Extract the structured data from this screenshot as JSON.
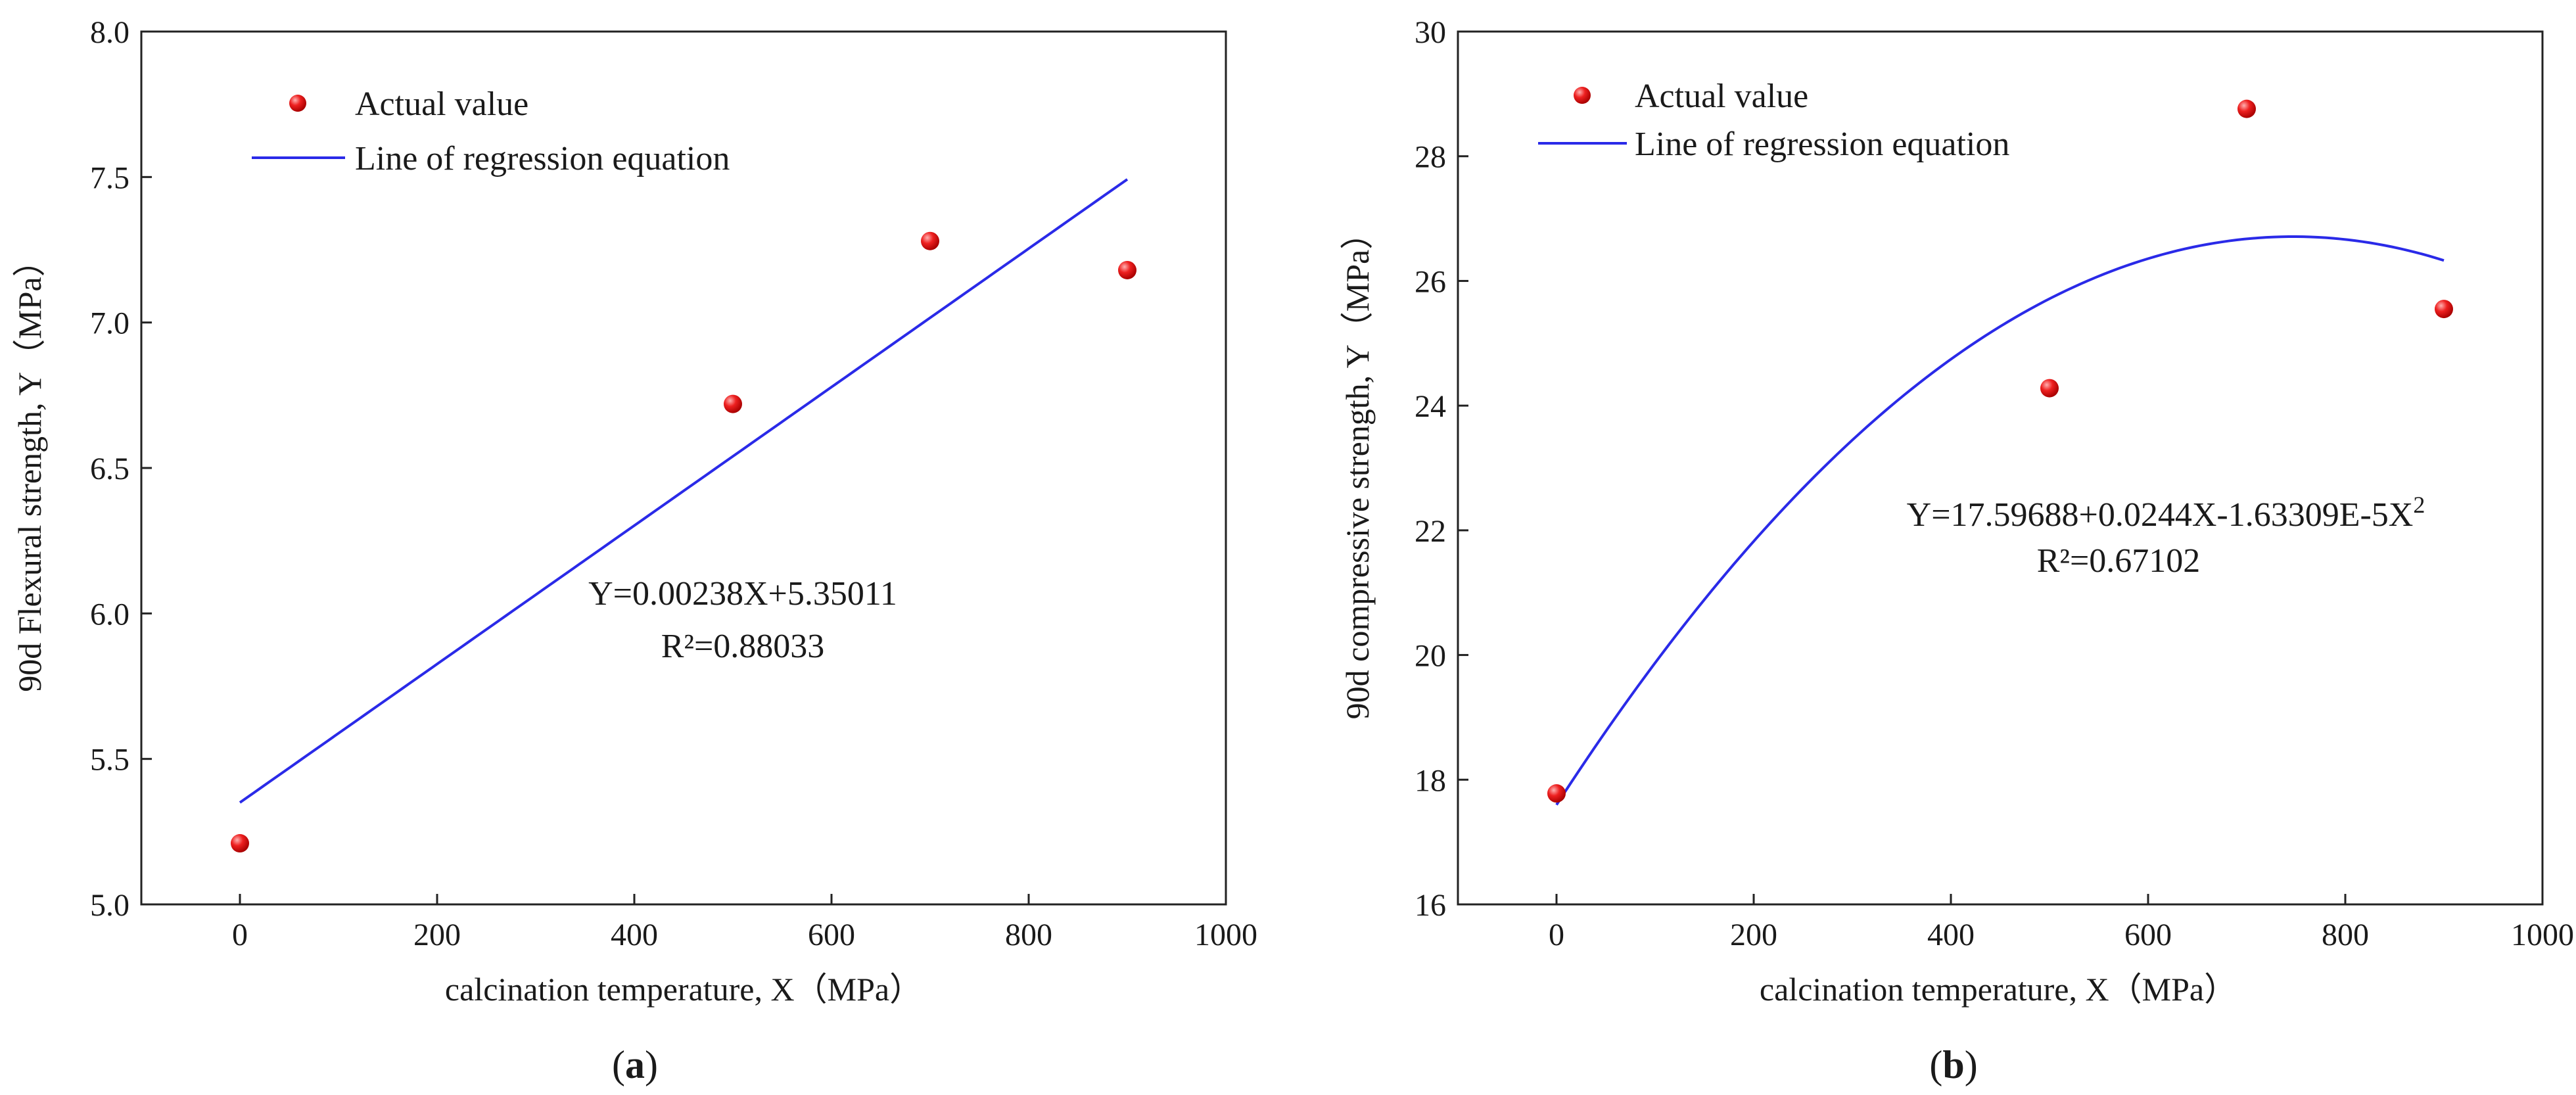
{
  "colors": {
    "point": "#e01414",
    "line": "#2a2ae8",
    "axis": "#222222"
  },
  "chart_data": [
    {
      "type": "scatter",
      "panel": {
        "open": "(",
        "letter": "a",
        "close": ")"
      },
      "xlabel": "calcination temperature, X（MPa）",
      "ylabel": "90d Flexural strength, Y（MPa）",
      "xlim": [
        -100,
        1000
      ],
      "ylim": [
        5.0,
        8.0
      ],
      "xticks": [
        0,
        200,
        400,
        600,
        800,
        1000
      ],
      "yticks": [
        5.0,
        5.5,
        6.0,
        6.5,
        7.0,
        7.5,
        8.0
      ],
      "xtick_labels": [
        "0",
        "200",
        "400",
        "600",
        "800",
        "1000"
      ],
      "ytick_labels": [
        "5.0",
        "5.5",
        "6.0",
        "6.5",
        "7.0",
        "7.5",
        "8.0"
      ],
      "legend": [
        "Actual value",
        "Line of regression equation"
      ],
      "legend_position": "top-left",
      "series": [
        {
          "name": "Actual value",
          "kind": "points",
          "x": [
            0,
            500,
            700,
            900
          ],
          "y": [
            5.21,
            6.72,
            7.28,
            7.18
          ]
        },
        {
          "name": "Line of regression equation",
          "kind": "line",
          "model": "linear",
          "coef": [
            5.35011,
            0.00238
          ],
          "x_range": [
            0,
            900
          ]
        }
      ],
      "annotation": {
        "equation": "Y=0.00238X+5.35011",
        "r2": "R²=0.88033"
      }
    },
    {
      "type": "scatter",
      "panel": {
        "open": "(",
        "letter": "b",
        "close": ")"
      },
      "xlabel": "calcination temperature, X（MPa）",
      "ylabel": "90d compressive strength, Y（MPa）",
      "xlim": [
        -100,
        1000
      ],
      "ylim": [
        16,
        30
      ],
      "xticks": [
        0,
        200,
        400,
        600,
        800,
        1000
      ],
      "yticks": [
        16,
        18,
        20,
        22,
        24,
        26,
        28,
        30
      ],
      "xtick_labels": [
        "0",
        "200",
        "400",
        "600",
        "800",
        "1000"
      ],
      "ytick_labels": [
        "16",
        "18",
        "20",
        "22",
        "24",
        "26",
        "28",
        "30"
      ],
      "legend": [
        "Actual value",
        "Line of regression equation"
      ],
      "legend_position": "top-left",
      "series": [
        {
          "name": "Actual value",
          "kind": "points",
          "x": [
            0,
            500,
            700,
            900
          ],
          "y": [
            17.78,
            24.28,
            28.76,
            25.55
          ]
        },
        {
          "name": "Line of regression equation",
          "kind": "line",
          "model": "quadratic",
          "coef": [
            17.59688,
            0.0244,
            -1.63309e-05
          ],
          "x_range": [
            0,
            900
          ]
        }
      ],
      "annotation": {
        "equation_main": "Y=17.59688+0.0244X-1.63309E-5X",
        "equation_sup": "2",
        "r2": "R²=0.67102"
      }
    }
  ]
}
